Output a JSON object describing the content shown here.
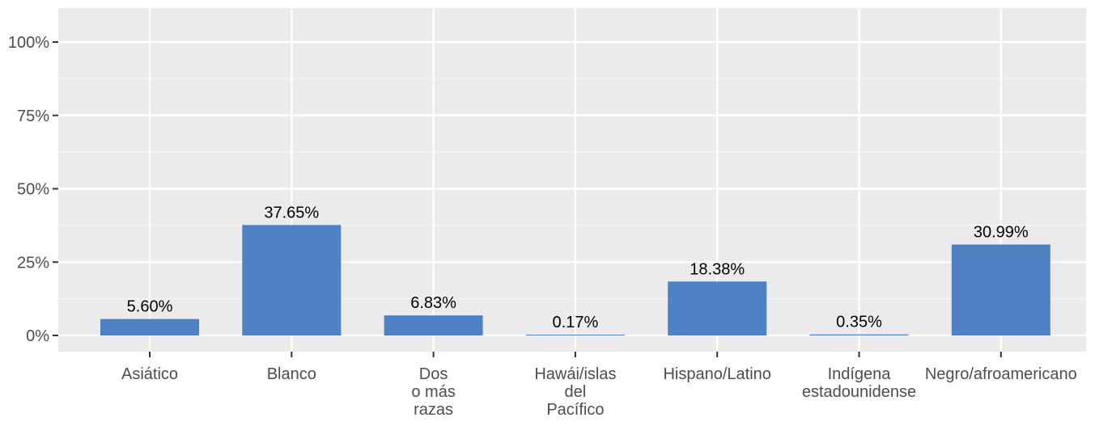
{
  "chart_data": {
    "type": "bar",
    "categories": [
      [
        "Asiático"
      ],
      [
        "Blanco"
      ],
      [
        "Dos",
        "o más",
        "razas"
      ],
      [
        "Hawái/islas",
        "del",
        "Pacífico"
      ],
      [
        "Hispano/Latino"
      ],
      [
        "Indígena",
        "estadounidense"
      ],
      [
        "Negro/afroamericano"
      ]
    ],
    "values": [
      5.6,
      37.65,
      6.83,
      0.17,
      18.38,
      0.35,
      30.99
    ],
    "data_labels": [
      "5.60%",
      "37.65%",
      "6.83%",
      "0.17%",
      "18.38%",
      "0.35%",
      "30.99%"
    ],
    "y_ticks": [
      0,
      25,
      50,
      75,
      100
    ],
    "y_tick_labels": [
      "0%",
      "25%",
      "50%",
      "75%",
      "100%"
    ],
    "ylim": [
      0,
      105
    ],
    "grid": true,
    "title": "",
    "xlabel": "",
    "ylabel": "",
    "colors": {
      "bar": "#4f81c4",
      "panel": "#ebebeb",
      "grid_major": "#ffffff",
      "grid_minor": "#f5f5f5",
      "tick": "#333333"
    }
  }
}
